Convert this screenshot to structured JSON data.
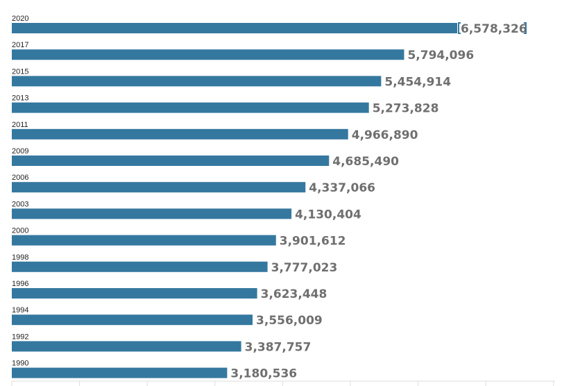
{
  "chart_data": {
    "type": "bar",
    "orientation": "horizontal",
    "title": "",
    "xlabel": "",
    "ylabel": "",
    "xlim": [
      0,
      8000000
    ],
    "categories": [
      "2020",
      "2017",
      "2015",
      "2013",
      "2011",
      "2009",
      "2006",
      "2003",
      "2000",
      "1998",
      "1996",
      "1994",
      "1992",
      "1990"
    ],
    "values": [
      6578326,
      5794096,
      5454914,
      5273828,
      4966890,
      4685490,
      4337066,
      4130404,
      3901612,
      3777023,
      3623448,
      3556009,
      3387757,
      3180536
    ],
    "value_labels": [
      "6,578,326",
      "5,794,096",
      "5,454,914",
      "5,273,828",
      "4,966,890",
      "4,685,490",
      "4,337,066",
      "4,130,404",
      "3,901,612",
      "3,777,023",
      "3,623,448",
      "3,556,009",
      "3,387,757",
      "3,180,536"
    ],
    "highlighted": "2020",
    "grid": false,
    "legend": "none",
    "colors": {
      "bar": "#35789f",
      "value_text": "#6f6f6f",
      "label_text": "#222222",
      "highlight_bracket": "#35789f"
    }
  }
}
